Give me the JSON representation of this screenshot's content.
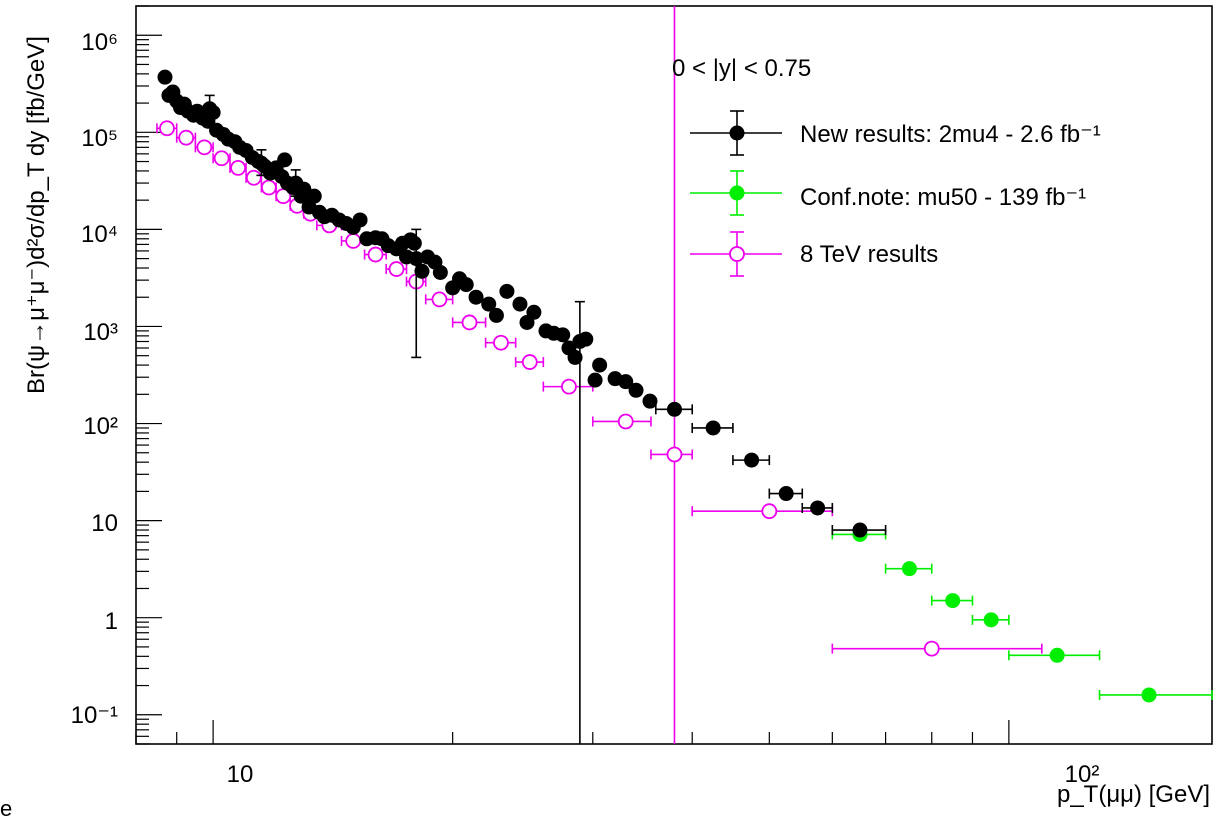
{
  "chart_data": {
    "type": "scatter",
    "title": "",
    "xlabel": "p_T(μμ) [GeV]",
    "ylabel": "Br(ψ→μ⁺μ⁻)d²σ/dp_T dy [fb/GeV]",
    "xscale": "log",
    "yscale": "log",
    "xlim": [
      8,
      180
    ],
    "ylim": [
      0.05,
      2000000
    ],
    "grid": false,
    "legend_position": "top-right",
    "annotation": "0 < |y| < 0.75",
    "x_ticks": [
      "10",
      "10²"
    ],
    "y_ticks": [
      "10⁻¹",
      "1",
      "10",
      "10²",
      "10³",
      "10⁴",
      "10⁵",
      "10⁶"
    ],
    "series": [
      {
        "name": "New results: 2mu4 - 2.6 fb⁻¹",
        "color": "#000000",
        "marker": "filled-circle",
        "points": [
          {
            "x": 8.7,
            "y": 370000
          },
          {
            "x": 8.8,
            "y": 240000
          },
          {
            "x": 8.9,
            "y": 260000
          },
          {
            "x": 9.0,
            "y": 210000
          },
          {
            "x": 9.1,
            "y": 180000
          },
          {
            "x": 9.2,
            "y": 195000
          },
          {
            "x": 9.3,
            "y": 165000
          },
          {
            "x": 9.45,
            "y": 150000
          },
          {
            "x": 9.55,
            "y": 165000
          },
          {
            "x": 9.7,
            "y": 140000
          },
          {
            "x": 9.85,
            "y": 130000
          },
          {
            "x": 9.9,
            "y": 175000,
            "ylo": 120000,
            "yhi": 240000
          },
          {
            "x": 10.0,
            "y": 160000
          },
          {
            "x": 10.1,
            "y": 105000
          },
          {
            "x": 10.3,
            "y": 95000
          },
          {
            "x": 10.45,
            "y": 85000
          },
          {
            "x": 10.65,
            "y": 80000
          },
          {
            "x": 10.8,
            "y": 70000
          },
          {
            "x": 11.0,
            "y": 65000
          },
          {
            "x": 11.2,
            "y": 55000
          },
          {
            "x": 11.4,
            "y": 50000
          },
          {
            "x": 11.5,
            "y": 48000,
            "ylo": 36000,
            "yhi": 66000
          },
          {
            "x": 11.6,
            "y": 45000
          },
          {
            "x": 11.8,
            "y": 38000
          },
          {
            "x": 12.0,
            "y": 43000
          },
          {
            "x": 12.2,
            "y": 35000
          },
          {
            "x": 12.3,
            "y": 52000
          },
          {
            "x": 12.4,
            "y": 30000
          },
          {
            "x": 12.6,
            "y": 27000
          },
          {
            "x": 12.7,
            "y": 30000,
            "ylo": 22000,
            "yhi": 41000
          },
          {
            "x": 12.9,
            "y": 22000
          },
          {
            "x": 13.0,
            "y": 26000
          },
          {
            "x": 13.2,
            "y": 17000
          },
          {
            "x": 13.4,
            "y": 22000
          },
          {
            "x": 13.6,
            "y": 15000
          },
          {
            "x": 13.8,
            "y": 13500
          },
          {
            "x": 14.1,
            "y": 14000
          },
          {
            "x": 14.4,
            "y": 12500
          },
          {
            "x": 14.7,
            "y": 11500
          },
          {
            "x": 15.0,
            "y": 10500
          },
          {
            "x": 15.3,
            "y": 12500
          },
          {
            "x": 15.6,
            "y": 8000
          },
          {
            "x": 16.0,
            "y": 8200
          },
          {
            "x": 16.3,
            "y": 8000
          },
          {
            "x": 16.6,
            "y": 6800
          },
          {
            "x": 17.0,
            "y": 6300
          },
          {
            "x": 17.3,
            "y": 7200
          },
          {
            "x": 17.5,
            "y": 5200
          },
          {
            "x": 17.7,
            "y": 7800
          },
          {
            "x": 17.9,
            "y": 7200
          },
          {
            "x": 18.0,
            "y": 5000,
            "ylo": 480,
            "yhi": 10000
          },
          {
            "x": 18.3,
            "y": 3700
          },
          {
            "x": 18.6,
            "y": 5200
          },
          {
            "x": 19.0,
            "y": 4600
          },
          {
            "x": 19.3,
            "y": 3600
          },
          {
            "x": 20.0,
            "y": 2500
          },
          {
            "x": 20.4,
            "y": 3100
          },
          {
            "x": 20.8,
            "y": 2700
          },
          {
            "x": 21.4,
            "y": 2000
          },
          {
            "x": 22.2,
            "y": 1700
          },
          {
            "x": 22.7,
            "y": 1300
          },
          {
            "x": 23.4,
            "y": 2300
          },
          {
            "x": 24.3,
            "y": 1700
          },
          {
            "x": 24.8,
            "y": 1100
          },
          {
            "x": 25.3,
            "y": 1400
          },
          {
            "x": 26.2,
            "y": 900
          },
          {
            "x": 26.8,
            "y": 850
          },
          {
            "x": 27.5,
            "y": 820
          },
          {
            "x": 28.0,
            "y": 600
          },
          {
            "x": 28.5,
            "y": 480
          },
          {
            "x": 28.9,
            "y": 700,
            "ylo": 0.05,
            "yhi": 1800
          },
          {
            "x": 29.4,
            "y": 740
          },
          {
            "x": 30.2,
            "y": 280
          },
          {
            "x": 30.6,
            "y": 400
          },
          {
            "x": 32.0,
            "y": 290
          },
          {
            "x": 33.0,
            "y": 270
          },
          {
            "x": 34.0,
            "y": 220
          },
          {
            "x": 35.4,
            "y": 170
          },
          {
            "x": 38.0,
            "y": 140,
            "xlo": 36.0,
            "xhi": 40.0
          },
          {
            "x": 42.5,
            "y": 90,
            "xlo": 40.0,
            "xhi": 45.0
          },
          {
            "x": 47.5,
            "y": 42,
            "xlo": 45.0,
            "xhi": 50.0
          },
          {
            "x": 52.5,
            "y": 19,
            "xlo": 50.0,
            "xhi": 55.0
          },
          {
            "x": 57.5,
            "y": 13.5,
            "xlo": 55.0,
            "xhi": 60.0
          },
          {
            "x": 65.0,
            "y": 8.0,
            "xlo": 60.0,
            "xhi": 70.0
          }
        ]
      },
      {
        "name": "Conf.note: mu50 - 139 fb⁻¹",
        "color": "#00ee00",
        "marker": "filled-circle",
        "points": [
          {
            "x": 65.0,
            "y": 7.2,
            "xlo": 60.0,
            "xhi": 70.0
          },
          {
            "x": 75.0,
            "y": 3.2,
            "xlo": 70.0,
            "xhi": 80.0
          },
          {
            "x": 85.0,
            "y": 1.5,
            "xlo": 80.0,
            "xhi": 90.0
          },
          {
            "x": 95.0,
            "y": 0.95,
            "xlo": 90.0,
            "xhi": 100.0
          },
          {
            "x": 115.0,
            "y": 0.41,
            "xlo": 100.0,
            "xhi": 130.0
          },
          {
            "x": 150.0,
            "y": 0.16,
            "xlo": 130.0,
            "xhi": 180.0
          }
        ]
      },
      {
        "name": "8 TeV results",
        "color": "#ee00ee",
        "marker": "open-circle",
        "points": [
          {
            "x": 8.75,
            "y": 110000,
            "xlo": 8.5,
            "xhi": 9.0
          },
          {
            "x": 9.25,
            "y": 88000,
            "xlo": 9.0,
            "xhi": 9.5
          },
          {
            "x": 9.75,
            "y": 70000,
            "xlo": 9.5,
            "xhi": 10.0
          },
          {
            "x": 10.25,
            "y": 54000,
            "xlo": 10.0,
            "xhi": 10.5
          },
          {
            "x": 10.75,
            "y": 43000,
            "xlo": 10.5,
            "xhi": 11.0
          },
          {
            "x": 11.25,
            "y": 34000,
            "xlo": 11.0,
            "xhi": 11.5
          },
          {
            "x": 11.75,
            "y": 27000,
            "xlo": 11.5,
            "xhi": 12.0
          },
          {
            "x": 12.25,
            "y": 22000,
            "xlo": 12.0,
            "xhi": 12.5
          },
          {
            "x": 12.75,
            "y": 17500,
            "xlo": 12.5,
            "xhi": 13.0
          },
          {
            "x": 13.25,
            "y": 14500,
            "xlo": 13.0,
            "xhi": 13.5
          },
          {
            "x": 14.0,
            "y": 11000,
            "xlo": 13.5,
            "xhi": 14.5
          },
          {
            "x": 15.0,
            "y": 7600,
            "xlo": 14.5,
            "xhi": 15.5
          },
          {
            "x": 16.0,
            "y": 5500,
            "xlo": 15.5,
            "xhi": 16.5
          },
          {
            "x": 17.0,
            "y": 3900,
            "xlo": 16.5,
            "xhi": 17.5
          },
          {
            "x": 18.0,
            "y": 2900,
            "xlo": 17.5,
            "xhi": 18.5
          },
          {
            "x": 19.25,
            "y": 1900,
            "xlo": 18.5,
            "xhi": 20.0
          },
          {
            "x": 21.0,
            "y": 1100,
            "xlo": 20.0,
            "xhi": 22.0
          },
          {
            "x": 23.0,
            "y": 680,
            "xlo": 22.0,
            "xhi": 24.0
          },
          {
            "x": 25.0,
            "y": 430,
            "xlo": 24.0,
            "xhi": 26.0
          },
          {
            "x": 28.0,
            "y": 240,
            "xlo": 26.0,
            "xhi": 30.0
          },
          {
            "x": 33.0,
            "y": 105,
            "xlo": 30.0,
            "xhi": 35.5
          },
          {
            "x": 38.0,
            "y": 48,
            "xlo": 35.5,
            "xhi": 40.0,
            "ylo": 0.05,
            "yhi": 2000000
          },
          {
            "x": 50.0,
            "y": 12.5,
            "xlo": 40.0,
            "xhi": 60.0
          },
          {
            "x": 80.0,
            "y": 0.48,
            "xlo": 60.0,
            "xhi": 110.0
          }
        ]
      }
    ]
  },
  "edge_text": "e"
}
